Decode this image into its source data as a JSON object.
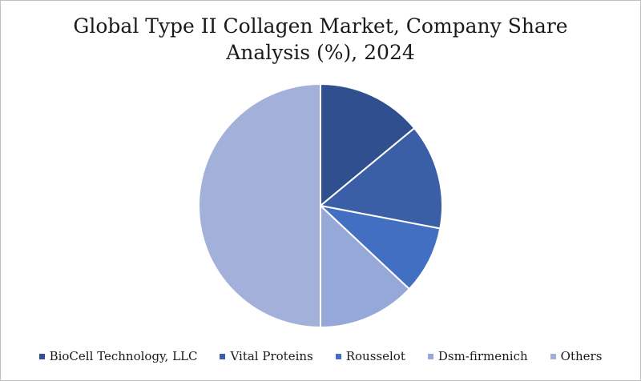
{
  "chart_data": {
    "type": "pie",
    "title_lines": [
      "Global Type II Collagen Market, Company Share",
      "Analysis (%), 2024"
    ],
    "categories": [
      "BioCell Technology, LLC",
      "Vital Proteins",
      "Rousselot",
      "Dsm-firmenich",
      "Others"
    ],
    "values": [
      14,
      14,
      9,
      13,
      50
    ],
    "colors": [
      "#2f4f8f",
      "#3a5fa6",
      "#436fc2",
      "#96a8d8",
      "#a2b0da"
    ],
    "legend_position": "bottom",
    "start_angle_deg": 0,
    "direction": "clockwise"
  }
}
